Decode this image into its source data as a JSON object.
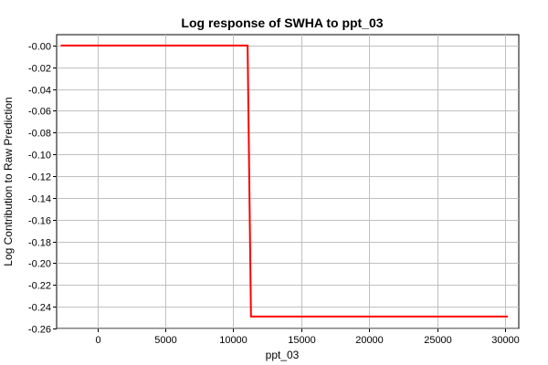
{
  "chart_data": {
    "type": "line",
    "title": "Log response of SWHA to ppt_03",
    "xlabel": "ppt_03",
    "ylabel": "Log Contribution to Raw Prediction",
    "xlim": [
      -3000,
      31000
    ],
    "ylim": [
      -0.26,
      0.01
    ],
    "x_ticks": [
      0,
      5000,
      10000,
      15000,
      20000,
      25000,
      30000
    ],
    "x_tick_labels": [
      "0",
      "5000",
      "10000",
      "15000",
      "20000",
      "25000",
      "30000"
    ],
    "y_ticks": [
      0.0,
      -0.02,
      -0.04,
      -0.06,
      -0.08,
      -0.1,
      -0.12,
      -0.14,
      -0.16,
      -0.18,
      -0.2,
      -0.22,
      -0.24,
      -0.26
    ],
    "y_tick_labels": [
      "-0.00",
      "-0.02",
      "-0.04",
      "-0.06",
      "-0.08",
      "-0.10",
      "-0.12",
      "-0.14",
      "-0.16",
      "-0.18",
      "-0.20",
      "-0.22",
      "-0.24",
      "-0.26"
    ],
    "grid": true,
    "series": [
      {
        "color": "#ff0000",
        "x": [
          -2700,
          11050,
          11300,
          30200
        ],
        "y": [
          0.0,
          0.0,
          -0.249,
          -0.249
        ]
      }
    ]
  }
}
